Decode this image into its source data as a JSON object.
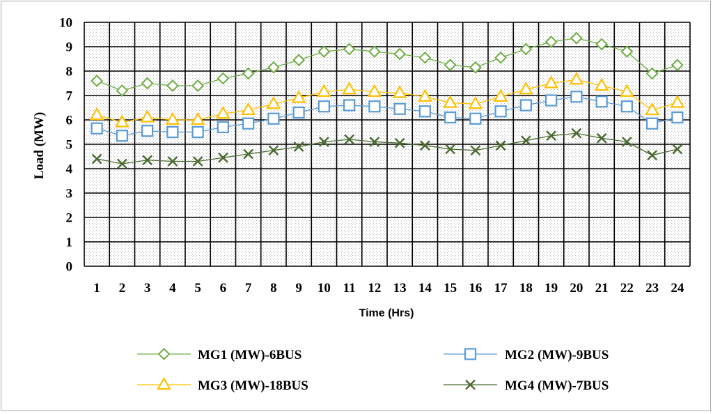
{
  "chart_data": {
    "type": "line",
    "title": "",
    "xlabel": "Time (Hrs)",
    "ylabel": "Load (MW)",
    "categories": [
      "1",
      "2",
      "3",
      "4",
      "5",
      "6",
      "7",
      "8",
      "9",
      "10",
      "11",
      "12",
      "13",
      "14",
      "15",
      "16",
      "17",
      "18",
      "19",
      "20",
      "21",
      "22",
      "23",
      "24"
    ],
    "ylim": [
      0,
      10
    ],
    "yticks": [
      "0",
      "1",
      "2",
      "3",
      "4",
      "5",
      "6",
      "7",
      "8",
      "9",
      "10"
    ],
    "grid": true,
    "legend_position": "bottom",
    "series": [
      {
        "name": "MG1 (MW)-6BUS",
        "marker": "diamond",
        "color": "#70ad47",
        "values": [
          7.6,
          7.2,
          7.5,
          7.4,
          7.4,
          7.7,
          7.9,
          8.15,
          8.45,
          8.8,
          8.9,
          8.8,
          8.7,
          8.55,
          8.25,
          8.15,
          8.55,
          8.9,
          9.2,
          9.35,
          9.1,
          8.8,
          7.9,
          8.25
        ]
      },
      {
        "name": "MG2 (MW)-9BUS",
        "marker": "square",
        "color": "#5b9bd5",
        "values": [
          5.65,
          5.35,
          5.55,
          5.5,
          5.5,
          5.7,
          5.85,
          6.05,
          6.3,
          6.55,
          6.6,
          6.55,
          6.45,
          6.35,
          6.1,
          6.05,
          6.35,
          6.6,
          6.8,
          6.95,
          6.75,
          6.55,
          5.85,
          6.1
        ]
      },
      {
        "name": "MG3 (MW)-18BUS",
        "marker": "triangle",
        "color": "#ffc000",
        "values": [
          6.2,
          5.9,
          6.1,
          6.0,
          6.0,
          6.25,
          6.4,
          6.65,
          6.9,
          7.15,
          7.25,
          7.15,
          7.1,
          6.95,
          6.7,
          6.65,
          6.95,
          7.25,
          7.5,
          7.65,
          7.4,
          7.15,
          6.4,
          6.7
        ]
      },
      {
        "name": "MG4 (MW)-7BUS",
        "marker": "x",
        "color": "#4b6b32",
        "values": [
          4.4,
          4.2,
          4.35,
          4.3,
          4.3,
          4.45,
          4.6,
          4.75,
          4.9,
          5.1,
          5.2,
          5.1,
          5.05,
          4.95,
          4.8,
          4.75,
          4.95,
          5.15,
          5.35,
          5.45,
          5.25,
          5.1,
          4.55,
          4.8
        ]
      }
    ]
  }
}
